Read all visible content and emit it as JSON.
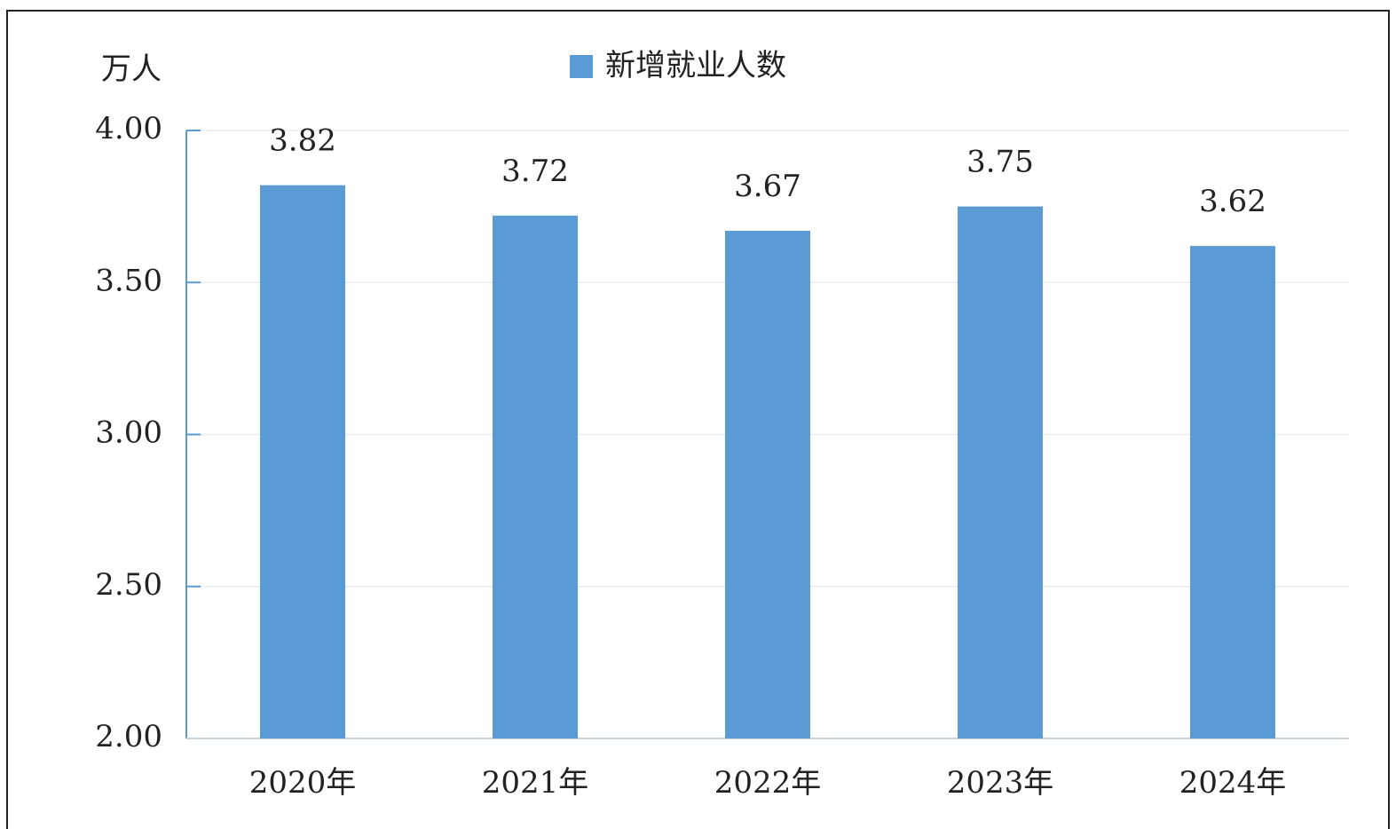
{
  "chart_data": {
    "type": "bar",
    "y_label": "万人",
    "categories": [
      "2020年",
      "2021年",
      "2022年",
      "2023年",
      "2024年"
    ],
    "series": [
      {
        "name": "新增就业人数",
        "color": "#5b9bd5",
        "values": [
          3.82,
          3.72,
          3.67,
          3.75,
          3.62
        ]
      }
    ],
    "ylim": [
      2,
      4
    ],
    "yticks": [
      {
        "value": 2,
        "label": "2.00"
      },
      {
        "value": 2.5,
        "label": "2.50"
      },
      {
        "value": 3,
        "label": "3.00"
      },
      {
        "value": 3.5,
        "label": "3.50"
      },
      {
        "value": 4,
        "label": "4.00"
      }
    ],
    "grid": true
  }
}
